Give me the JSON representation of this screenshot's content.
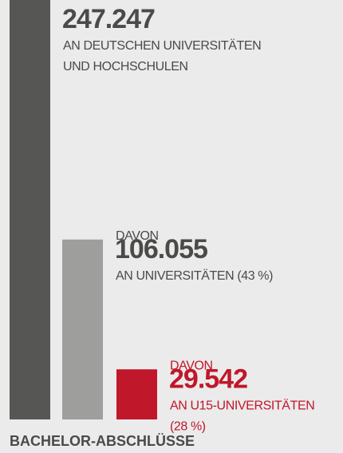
{
  "chart_data": {
    "type": "bar",
    "title": "BACHELOR-ABSCHLÜSSE",
    "labels_above": [
      null,
      "DAVON",
      "DAVON"
    ],
    "categories": [
      [
        "AN DEUTSCHEN UNIVERSITÄTEN",
        "UND HOCHSCHULEN"
      ],
      [
        "AN UNIVERSITÄTEN (43 %)"
      ],
      [
        "AN U15-UNIVERSITÄTEN",
        "(28 %)"
      ]
    ],
    "values": [
      247247,
      106055,
      29542
    ],
    "value_labels": [
      "247.247",
      "106.055",
      "29.542"
    ],
    "colors": [
      "#565654",
      "#9e9e9c",
      "#c0172a"
    ],
    "ylim": [
      0,
      247247
    ]
  }
}
